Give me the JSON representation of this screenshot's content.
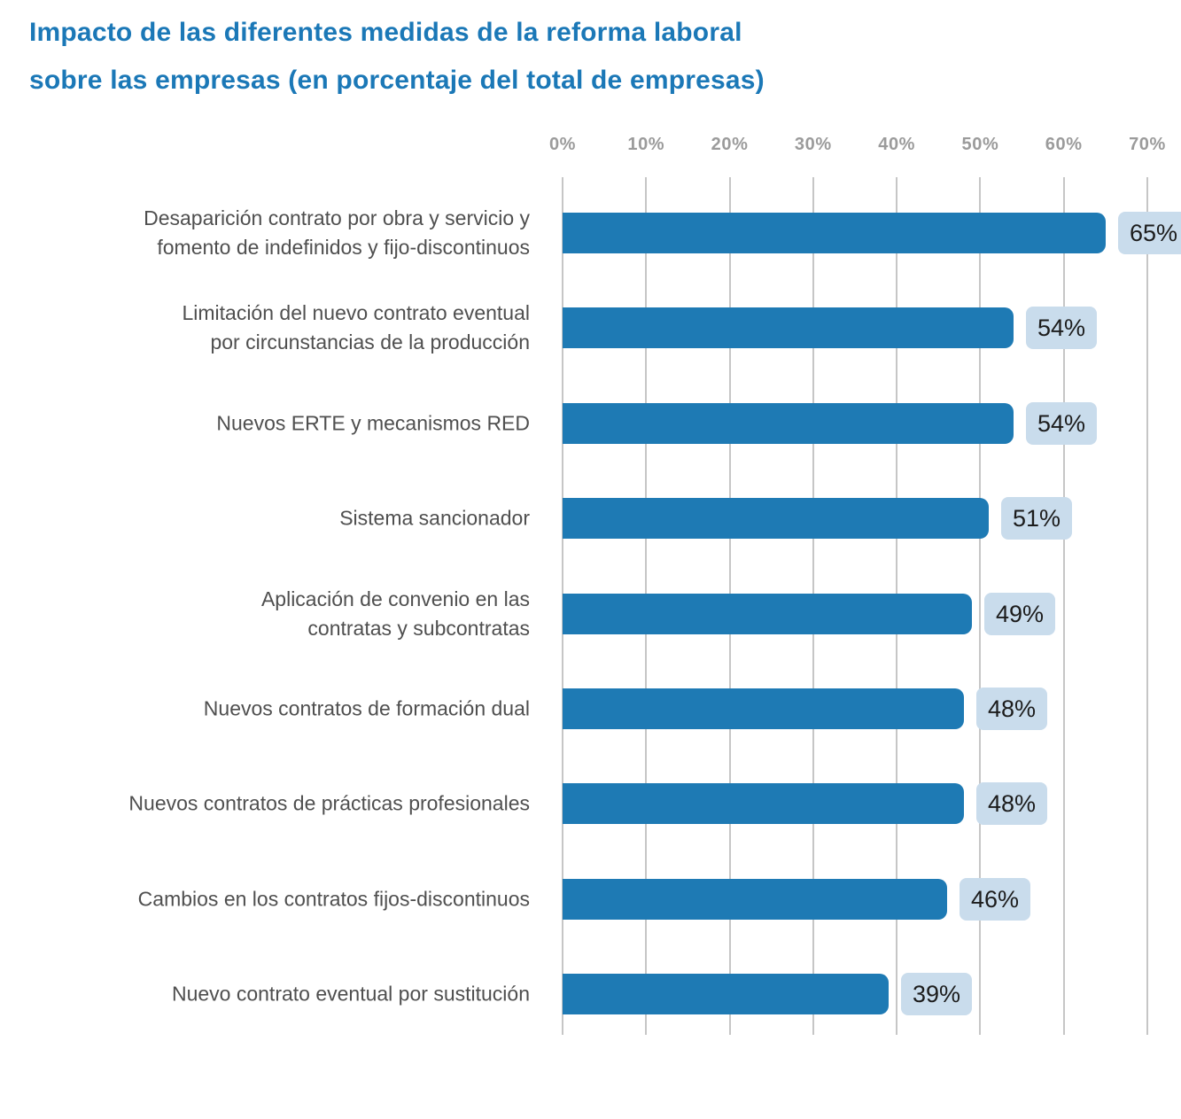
{
  "title": {
    "lines": [
      "Impacto de las diferentes medidas de la reforma laboral",
      "sobre las empresas (en porcentaje del total de empresas)"
    ],
    "color": "#1b78b7"
  },
  "chart_data": {
    "type": "bar",
    "orientation": "horizontal",
    "title": "Impacto de las diferentes medidas de la reforma laboral sobre las empresas (en porcentaje del total de empresas)",
    "categories": [
      "Desaparición contrato por obra y servicio y fomento de indefinidos y fijo-discontinuos",
      "Limitación del nuevo contrato eventual por circunstancias de la producción",
      "Nuevos ERTE y mecanismos RED",
      "Sistema sancionador",
      "Aplicación de convenio en las contratas y subcontratas",
      "Nuevos contratos de formación dual",
      "Nuevos contratos de prácticas profesionales",
      "Cambios en los contratos fijos-discontinuos",
      "Nuevo contrato eventual por sustitución"
    ],
    "category_lines": [
      [
        "Desaparición contrato por obra y servicio y",
        "fomento de indefinidos y fijo-discontinuos"
      ],
      [
        "Limitación del nuevo contrato eventual",
        "por circunstancias de la producción"
      ],
      [
        "Nuevos ERTE y mecanismos RED"
      ],
      [
        "Sistema sancionador"
      ],
      [
        "Aplicación de convenio en las",
        "contratas y subcontratas"
      ],
      [
        "Nuevos contratos de formación dual"
      ],
      [
        "Nuevos contratos de prácticas profesionales"
      ],
      [
        "Cambios en los contratos fijos-discontinuos"
      ],
      [
        "Nuevo contrato eventual por sustitución"
      ]
    ],
    "values": [
      65,
      54,
      54,
      51,
      49,
      48,
      48,
      46,
      39
    ],
    "value_labels": [
      "65%",
      "54%",
      "54%",
      "51%",
      "49%",
      "48%",
      "48%",
      "46%",
      "39%"
    ],
    "x_axis": {
      "position": "top",
      "min": 0,
      "max": 70,
      "ticks": [
        "0%",
        "10%",
        "20%",
        "30%",
        "40%",
        "50%",
        "60%",
        "70%"
      ]
    },
    "grid": true,
    "legend": false,
    "colors": {
      "bar": "#1e7ab4",
      "value_chip_bg": "#c9dcec",
      "value_text": "#1c1c1c",
      "category_text": "#4f4f4f",
      "axis_text": "#9b9b9b",
      "gridline": "#c6c6c6",
      "background": "#ffffff"
    }
  }
}
